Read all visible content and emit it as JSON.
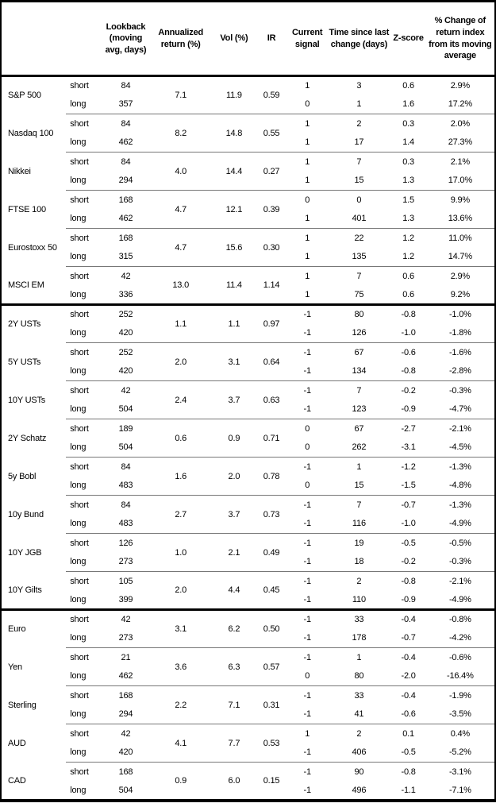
{
  "colors": {
    "text": "#000000",
    "outer_border": "#000000",
    "section_divider": "#000000",
    "group_divider": "#777777",
    "background": "#ffffff"
  },
  "table": {
    "headers": {
      "asset": "",
      "horizon": "",
      "lookback": "Lookback (moving avg, days)",
      "annualized_return": "Annualized return (%)",
      "vol": "Vol (%)",
      "ir": "IR",
      "current_signal": "Current signal",
      "time_since": "Time since last change (days)",
      "z_score": "Z-score",
      "pct_change": "% Change of return index from its moving average"
    },
    "sections": [
      {
        "assets": [
          {
            "name": "S&P 500",
            "annualized_return": "7.1",
            "vol": "11.9",
            "ir": "0.59",
            "rows": [
              {
                "horizon": "short",
                "lookback": "84",
                "signal": "1",
                "time": "3",
                "z": "0.6",
                "pct": "2.9%"
              },
              {
                "horizon": "long",
                "lookback": "357",
                "signal": "0",
                "time": "1",
                "z": "1.6",
                "pct": "17.2%"
              }
            ]
          },
          {
            "name": "Nasdaq 100",
            "annualized_return": "8.2",
            "vol": "14.8",
            "ir": "0.55",
            "rows": [
              {
                "horizon": "short",
                "lookback": "84",
                "signal": "1",
                "time": "2",
                "z": "0.3",
                "pct": "2.0%"
              },
              {
                "horizon": "long",
                "lookback": "462",
                "signal": "1",
                "time": "17",
                "z": "1.4",
                "pct": "27.3%"
              }
            ]
          },
          {
            "name": "Nikkei",
            "annualized_return": "4.0",
            "vol": "14.4",
            "ir": "0.27",
            "rows": [
              {
                "horizon": "short",
                "lookback": "84",
                "signal": "1",
                "time": "7",
                "z": "0.3",
                "pct": "2.1%"
              },
              {
                "horizon": "long",
                "lookback": "294",
                "signal": "1",
                "time": "15",
                "z": "1.3",
                "pct": "17.0%"
              }
            ]
          },
          {
            "name": "FTSE 100",
            "annualized_return": "4.7",
            "vol": "12.1",
            "ir": "0.39",
            "rows": [
              {
                "horizon": "short",
                "lookback": "168",
                "signal": "0",
                "time": "0",
                "z": "1.5",
                "pct": "9.9%"
              },
              {
                "horizon": "long",
                "lookback": "462",
                "signal": "1",
                "time": "401",
                "z": "1.3",
                "pct": "13.6%"
              }
            ]
          },
          {
            "name": "Eurostoxx 50",
            "annualized_return": "4.7",
            "vol": "15.6",
            "ir": "0.30",
            "rows": [
              {
                "horizon": "short",
                "lookback": "168",
                "signal": "1",
                "time": "22",
                "z": "1.2",
                "pct": "11.0%"
              },
              {
                "horizon": "long",
                "lookback": "315",
                "signal": "1",
                "time": "135",
                "z": "1.2",
                "pct": "14.7%"
              }
            ]
          },
          {
            "name": "MSCI EM",
            "annualized_return": "13.0",
            "vol": "11.4",
            "ir": "1.14",
            "rows": [
              {
                "horizon": "short",
                "lookback": "42",
                "signal": "1",
                "time": "7",
                "z": "0.6",
                "pct": "2.9%"
              },
              {
                "horizon": "long",
                "lookback": "336",
                "signal": "1",
                "time": "75",
                "z": "0.6",
                "pct": "9.2%"
              }
            ]
          }
        ]
      },
      {
        "assets": [
          {
            "name": "2Y USTs",
            "annualized_return": "1.1",
            "vol": "1.1",
            "ir": "0.97",
            "rows": [
              {
                "horizon": "short",
                "lookback": "252",
                "signal": "-1",
                "time": "80",
                "z": "-0.8",
                "pct": "-1.0%"
              },
              {
                "horizon": "long",
                "lookback": "420",
                "signal": "-1",
                "time": "126",
                "z": "-1.0",
                "pct": "-1.8%"
              }
            ]
          },
          {
            "name": "5Y USTs",
            "annualized_return": "2.0",
            "vol": "3.1",
            "ir": "0.64",
            "rows": [
              {
                "horizon": "short",
                "lookback": "252",
                "signal": "-1",
                "time": "67",
                "z": "-0.6",
                "pct": "-1.6%"
              },
              {
                "horizon": "long",
                "lookback": "420",
                "signal": "-1",
                "time": "134",
                "z": "-0.8",
                "pct": "-2.8%"
              }
            ]
          },
          {
            "name": "10Y USTs",
            "annualized_return": "2.4",
            "vol": "3.7",
            "ir": "0.63",
            "rows": [
              {
                "horizon": "short",
                "lookback": "42",
                "signal": "-1",
                "time": "7",
                "z": "-0.2",
                "pct": "-0.3%"
              },
              {
                "horizon": "long",
                "lookback": "504",
                "signal": "-1",
                "time": "123",
                "z": "-0.9",
                "pct": "-4.7%"
              }
            ]
          },
          {
            "name": "2Y Schatz",
            "annualized_return": "0.6",
            "vol": "0.9",
            "ir": "0.71",
            "rows": [
              {
                "horizon": "short",
                "lookback": "189",
                "signal": "0",
                "time": "67",
                "z": "-2.7",
                "pct": "-2.1%"
              },
              {
                "horizon": "long",
                "lookback": "504",
                "signal": "0",
                "time": "262",
                "z": "-3.1",
                "pct": "-4.5%"
              }
            ]
          },
          {
            "name": "5y Bobl",
            "annualized_return": "1.6",
            "vol": "2.0",
            "ir": "0.78",
            "rows": [
              {
                "horizon": "short",
                "lookback": "84",
                "signal": "-1",
                "time": "1",
                "z": "-1.2",
                "pct": "-1.3%"
              },
              {
                "horizon": "long",
                "lookback": "483",
                "signal": "0",
                "time": "15",
                "z": "-1.5",
                "pct": "-4.8%"
              }
            ]
          },
          {
            "name": "10y Bund",
            "annualized_return": "2.7",
            "vol": "3.7",
            "ir": "0.73",
            "rows": [
              {
                "horizon": "short",
                "lookback": "84",
                "signal": "-1",
                "time": "7",
                "z": "-0.7",
                "pct": "-1.3%"
              },
              {
                "horizon": "long",
                "lookback": "483",
                "signal": "-1",
                "time": "116",
                "z": "-1.0",
                "pct": "-4.9%"
              }
            ]
          },
          {
            "name": "10Y JGB",
            "annualized_return": "1.0",
            "vol": "2.1",
            "ir": "0.49",
            "rows": [
              {
                "horizon": "short",
                "lookback": "126",
                "signal": "-1",
                "time": "19",
                "z": "-0.5",
                "pct": "-0.5%"
              },
              {
                "horizon": "long",
                "lookback": "273",
                "signal": "-1",
                "time": "18",
                "z": "-0.2",
                "pct": "-0.3%"
              }
            ]
          },
          {
            "name": "10Y Gilts",
            "annualized_return": "2.0",
            "vol": "4.4",
            "ir": "0.45",
            "rows": [
              {
                "horizon": "short",
                "lookback": "105",
                "signal": "-1",
                "time": "2",
                "z": "-0.8",
                "pct": "-2.1%"
              },
              {
                "horizon": "long",
                "lookback": "399",
                "signal": "-1",
                "time": "110",
                "z": "-0.9",
                "pct": "-4.9%"
              }
            ]
          }
        ]
      },
      {
        "assets": [
          {
            "name": "Euro",
            "annualized_return": "3.1",
            "vol": "6.2",
            "ir": "0.50",
            "rows": [
              {
                "horizon": "short",
                "lookback": "42",
                "signal": "-1",
                "time": "33",
                "z": "-0.4",
                "pct": "-0.8%"
              },
              {
                "horizon": "long",
                "lookback": "273",
                "signal": "-1",
                "time": "178",
                "z": "-0.7",
                "pct": "-4.2%"
              }
            ]
          },
          {
            "name": "Yen",
            "annualized_return": "3.6",
            "vol": "6.3",
            "ir": "0.57",
            "rows": [
              {
                "horizon": "short",
                "lookback": "21",
                "signal": "-1",
                "time": "1",
                "z": "-0.4",
                "pct": "-0.6%"
              },
              {
                "horizon": "long",
                "lookback": "462",
                "signal": "0",
                "time": "80",
                "z": "-2.0",
                "pct": "-16.4%"
              }
            ]
          },
          {
            "name": "Sterling",
            "annualized_return": "2.2",
            "vol": "7.1",
            "ir": "0.31",
            "rows": [
              {
                "horizon": "short",
                "lookback": "168",
                "signal": "-1",
                "time": "33",
                "z": "-0.4",
                "pct": "-1.9%"
              },
              {
                "horizon": "long",
                "lookback": "294",
                "signal": "-1",
                "time": "41",
                "z": "-0.6",
                "pct": "-3.5%"
              }
            ]
          },
          {
            "name": "AUD",
            "annualized_return": "4.1",
            "vol": "7.7",
            "ir": "0.53",
            "rows": [
              {
                "horizon": "short",
                "lookback": "42",
                "signal": "1",
                "time": "2",
                "z": "0.1",
                "pct": "0.4%"
              },
              {
                "horizon": "long",
                "lookback": "420",
                "signal": "-1",
                "time": "406",
                "z": "-0.5",
                "pct": "-5.2%"
              }
            ]
          },
          {
            "name": "CAD",
            "annualized_return": "0.9",
            "vol": "6.0",
            "ir": "0.15",
            "rows": [
              {
                "horizon": "short",
                "lookback": "168",
                "signal": "-1",
                "time": "90",
                "z": "-0.8",
                "pct": "-3.1%"
              },
              {
                "horizon": "long",
                "lookback": "504",
                "signal": "-1",
                "time": "496",
                "z": "-1.1",
                "pct": "-7.1%"
              }
            ]
          }
        ]
      }
    ]
  }
}
